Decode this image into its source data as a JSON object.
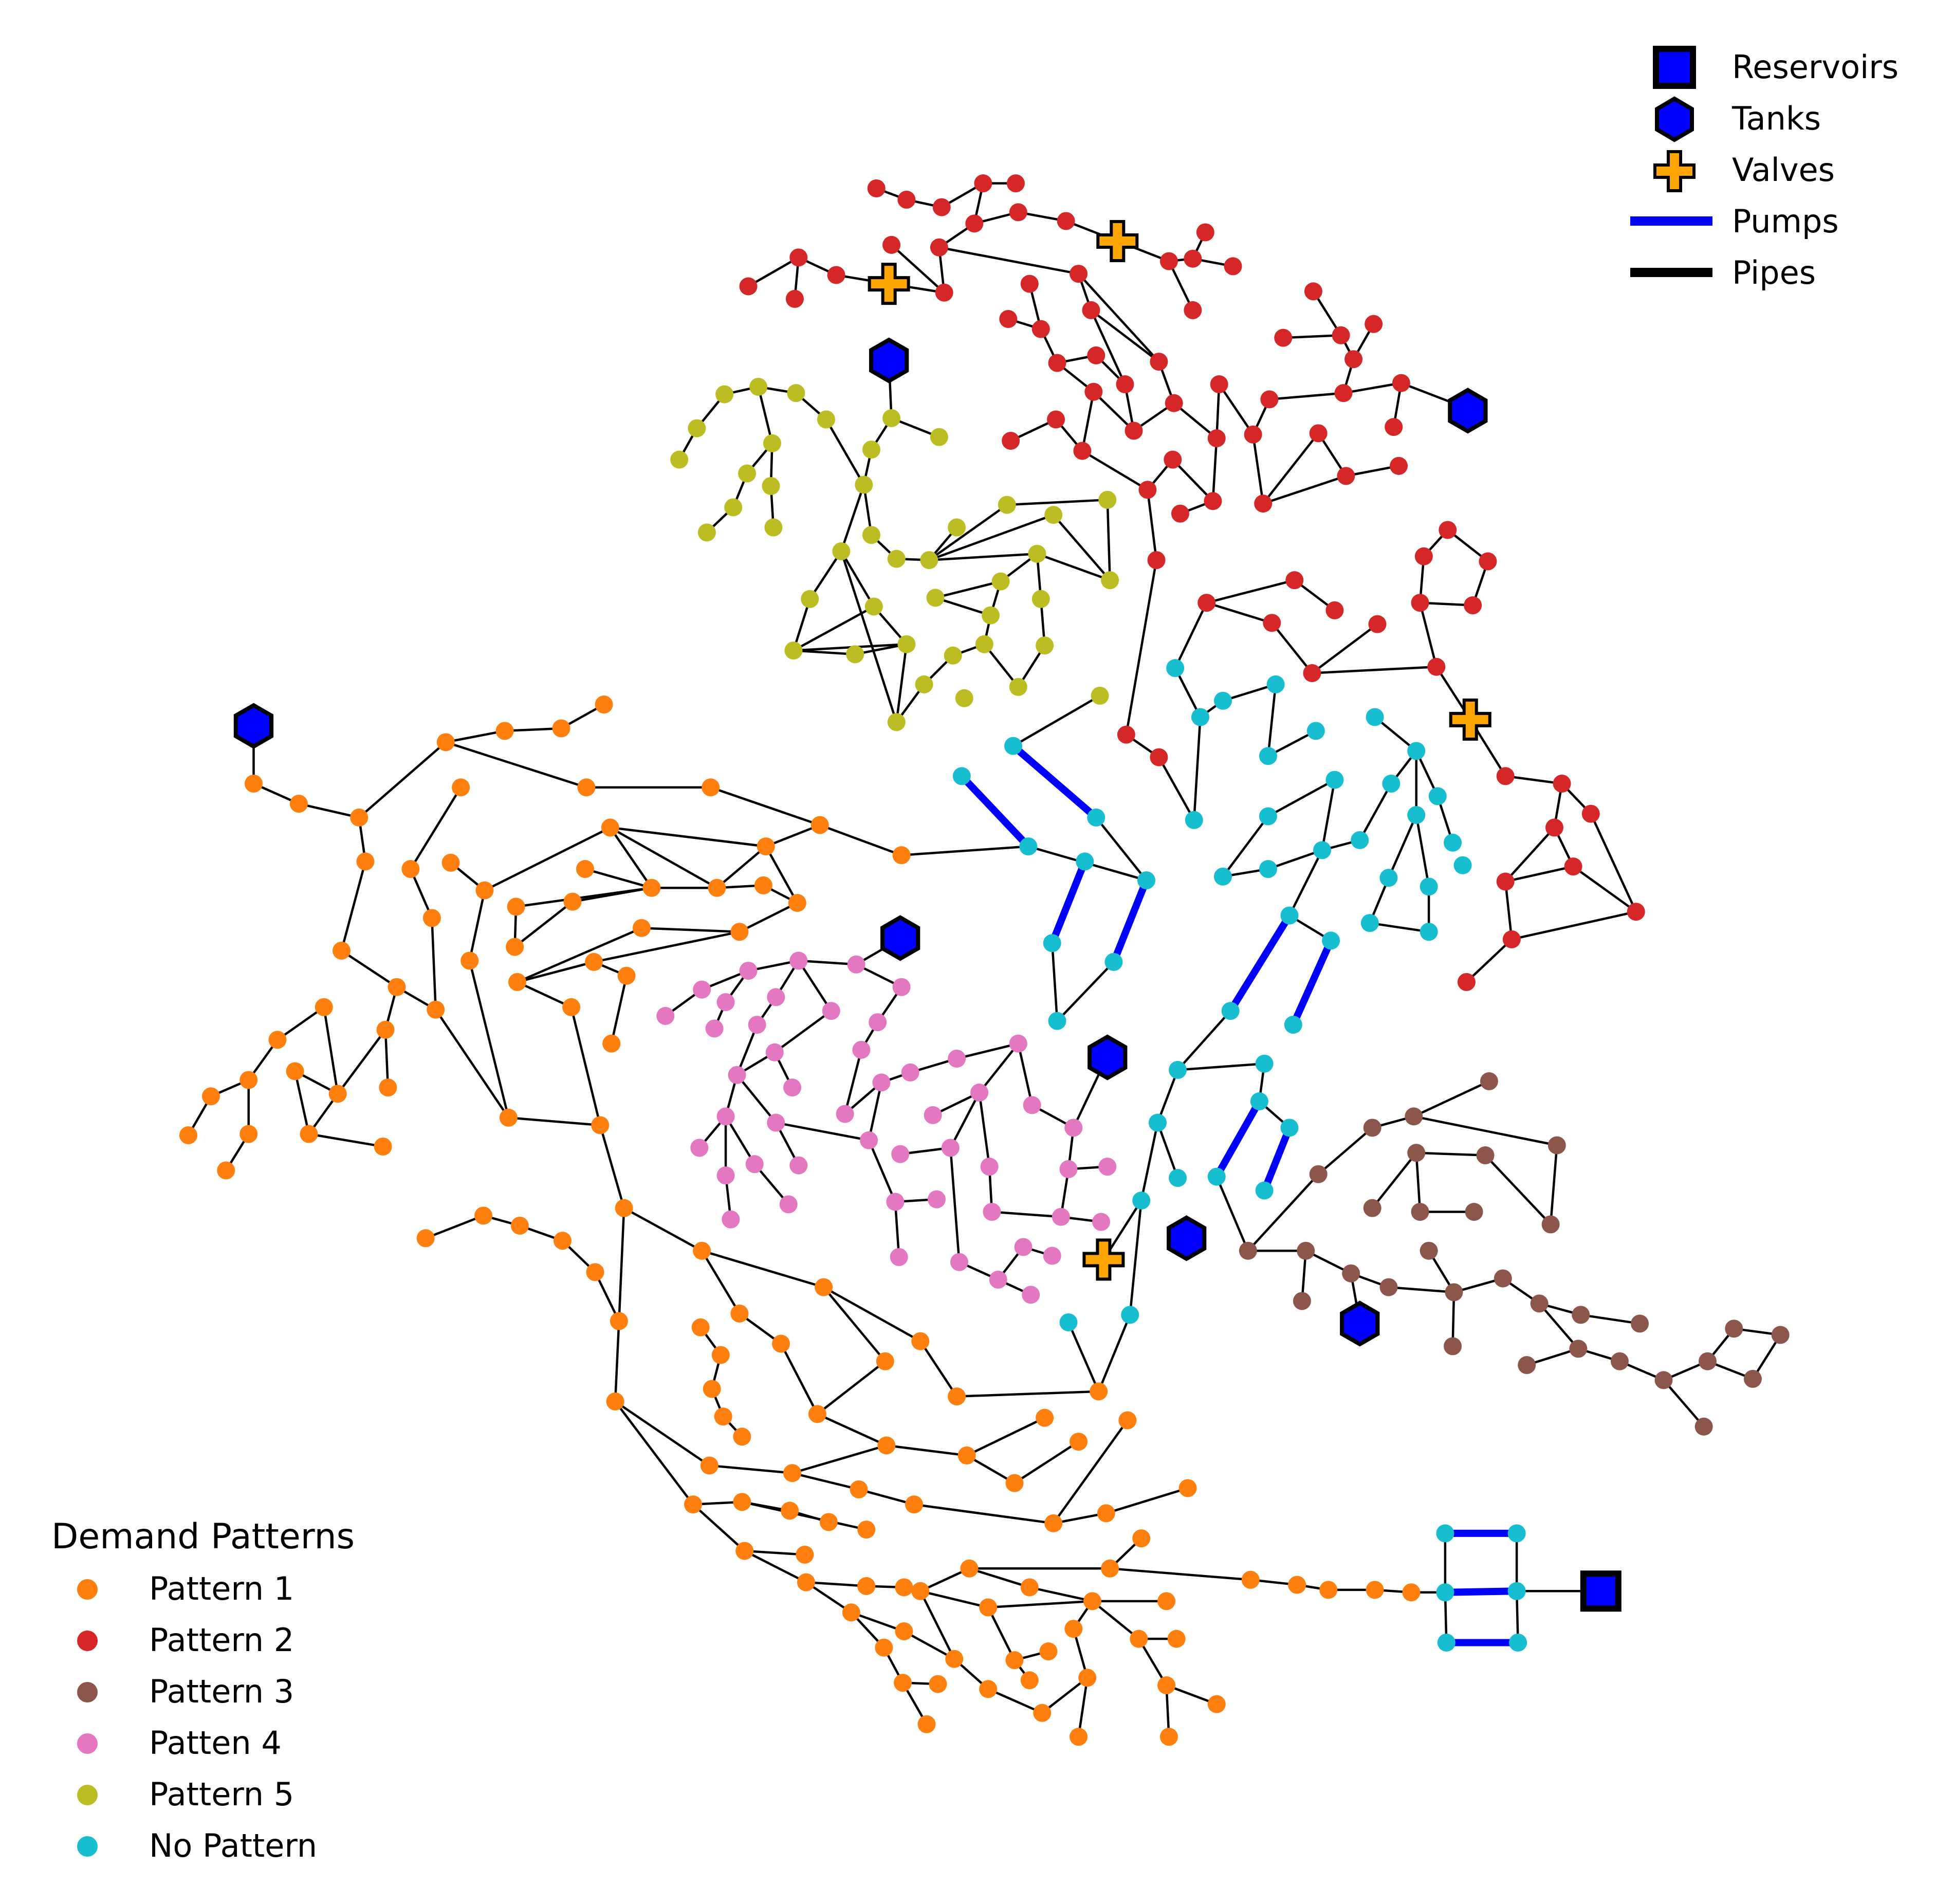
{
  "legend_components": {
    "items": [
      {
        "label": "Reservoirs",
        "symbol": "square",
        "color": "#0000ff"
      },
      {
        "label": "Tanks",
        "symbol": "hexagon",
        "color": "#0000ff"
      },
      {
        "label": "Valves",
        "symbol": "plus",
        "color": "#ffa500"
      },
      {
        "label": "Pumps",
        "symbol": "line",
        "color": "#0000ff"
      },
      {
        "label": "Pipes",
        "symbol": "line",
        "color": "#000000"
      }
    ]
  },
  "legend_patterns": {
    "title": "Demand Patterns",
    "items": [
      {
        "label": "Pattern 1",
        "color": "#ff7f0e"
      },
      {
        "label": "Pattern 2",
        "color": "#d62728"
      },
      {
        "label": "Pattern 3",
        "color": "#8c564b"
      },
      {
        "label": "Patten 4",
        "color": "#e377c2"
      },
      {
        "label": "Pattern 5",
        "color": "#bcbd22"
      },
      {
        "label": "No Pattern",
        "color": "#17becf"
      }
    ]
  },
  "colors": {
    "pipe": "#000000",
    "pump": "#0000ff",
    "tank": "#0000ff",
    "reservoir": "#0000ff",
    "valve": "#ffa500"
  }
}
